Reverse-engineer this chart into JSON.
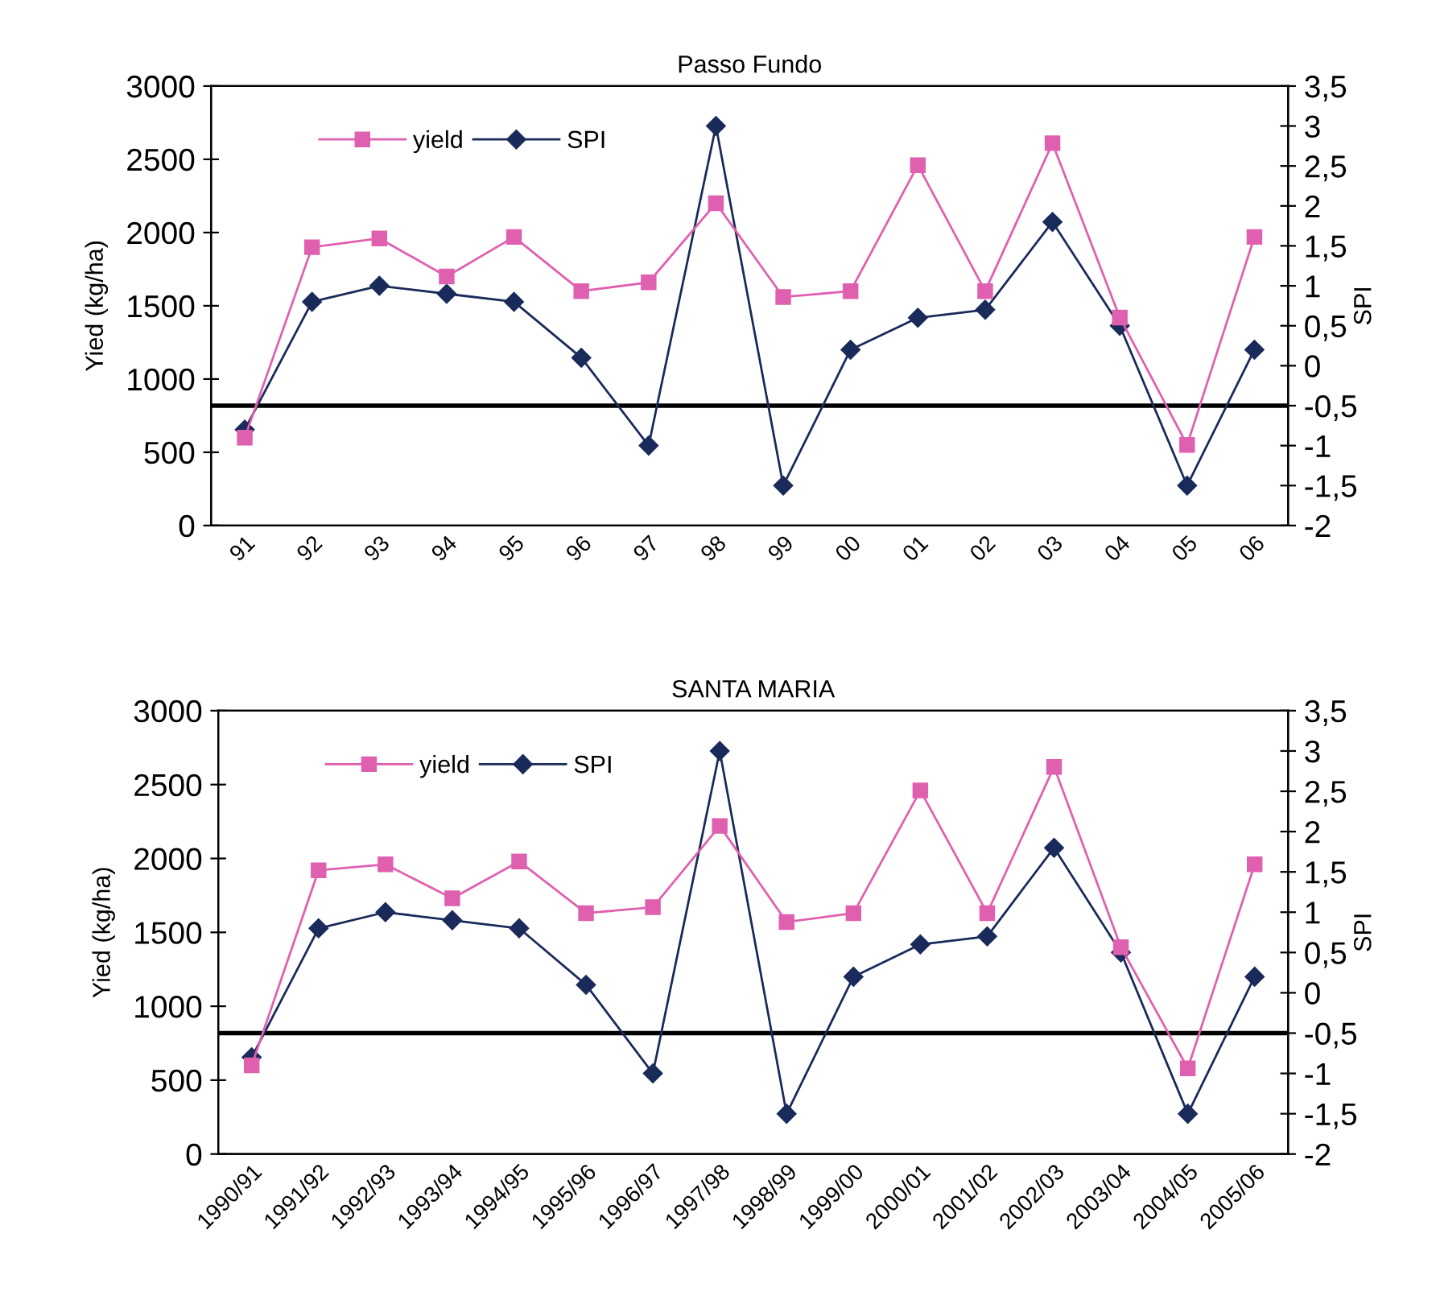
{
  "chart_data": [
    {
      "type": "line",
      "title": "Passo Fundo",
      "ylabel": "Yied (kg/ha)",
      "y2label": "SPI",
      "categories": [
        "91",
        "92",
        "93",
        "94",
        "95",
        "96",
        "97",
        "98",
        "99",
        "00",
        "01",
        "02",
        "03",
        "04",
        "05",
        "06"
      ],
      "series": [
        {
          "name": "yield",
          "color": "#e060b0",
          "marker": "square",
          "values": [
            600,
            1900,
            1960,
            1700,
            1970,
            1600,
            1660,
            2200,
            1560,
            1600,
            2460,
            1600,
            2610,
            1420,
            550,
            1970
          ]
        },
        {
          "name": "SPI",
          "color": "#1a2a5a",
          "marker": "diamond",
          "axis": "y2",
          "values": [
            -0.8,
            0.8,
            1.0,
            0.9,
            0.8,
            0.1,
            -1.0,
            3.0,
            -1.5,
            0.2,
            0.6,
            0.7,
            1.8,
            0.5,
            -1.5,
            0.2
          ]
        }
      ],
      "ylim": [
        0,
        3000
      ],
      "yticks": [
        0,
        500,
        1000,
        1500,
        2000,
        2500,
        3000
      ],
      "y2lim": [
        -2,
        3.5
      ],
      "y2ticks": [
        {
          "value": -2,
          "label": "-2"
        },
        {
          "value": -1.5,
          "label": "-1,5"
        },
        {
          "value": -1,
          "label": "-1"
        },
        {
          "value": -0.5,
          "label": "-0,5"
        },
        {
          "value": 0,
          "label": "0"
        },
        {
          "value": 0.5,
          "label": "0,5"
        },
        {
          "value": 1,
          "label": "1"
        },
        {
          "value": 1.5,
          "label": "1,5"
        },
        {
          "value": 2,
          "label": "2"
        },
        {
          "value": 2.5,
          "label": "2,5"
        },
        {
          "value": 3,
          "label": "3"
        },
        {
          "value": 3.5,
          "label": "3,5"
        }
      ],
      "ref_lines": [
        {
          "axis": "y2",
          "value": -0.5,
          "color": "#000000"
        }
      ],
      "legend": "top left",
      "grid": false
    },
    {
      "type": "line",
      "title": "SANTA MARIA",
      "ylabel": "Yied (kg/ha)",
      "y2label": "SPI",
      "categories": [
        "1990/91",
        "1991/92",
        "1992/93",
        "1993/94",
        "1994/95",
        "1995/96",
        "1996/97",
        "1997/98",
        "1998/99",
        "1999/00",
        "2000/01",
        "2001/02",
        "2002/03",
        "2003/04",
        "2004/05",
        "2005/06"
      ],
      "series": [
        {
          "name": "yield",
          "color": "#e060b0",
          "marker": "square",
          "values": [
            600,
            1920,
            1960,
            1730,
            1980,
            1630,
            1670,
            2220,
            1570,
            1630,
            2460,
            1630,
            2620,
            1400,
            580,
            1960
          ]
        },
        {
          "name": "SPI",
          "color": "#1a2a5a",
          "marker": "diamond",
          "axis": "y2",
          "values": [
            -0.8,
            0.8,
            1.0,
            0.9,
            0.8,
            0.1,
            -1.0,
            3.0,
            -1.5,
            0.2,
            0.6,
            0.7,
            1.8,
            0.5,
            -1.5,
            0.2
          ]
        }
      ],
      "ylim": [
        0,
        3000
      ],
      "yticks": [
        0,
        500,
        1000,
        1500,
        2000,
        2500,
        3000
      ],
      "y2lim": [
        -2,
        3.5
      ],
      "y2ticks": [
        {
          "value": -2,
          "label": "-2"
        },
        {
          "value": -1.5,
          "label": "-1,5"
        },
        {
          "value": -1,
          "label": "-1"
        },
        {
          "value": -0.5,
          "label": "-0,5"
        },
        {
          "value": 0,
          "label": "0"
        },
        {
          "value": 0.5,
          "label": "0,5"
        },
        {
          "value": 1,
          "label": "1"
        },
        {
          "value": 1.5,
          "label": "1,5"
        },
        {
          "value": 2,
          "label": "2"
        },
        {
          "value": 2.5,
          "label": "2,5"
        },
        {
          "value": 3,
          "label": "3"
        },
        {
          "value": 3.5,
          "label": "3,5"
        }
      ],
      "ref_lines": [
        {
          "axis": "y2",
          "value": -0.5,
          "color": "#000000"
        }
      ],
      "legend": "top left",
      "grid": false
    }
  ]
}
